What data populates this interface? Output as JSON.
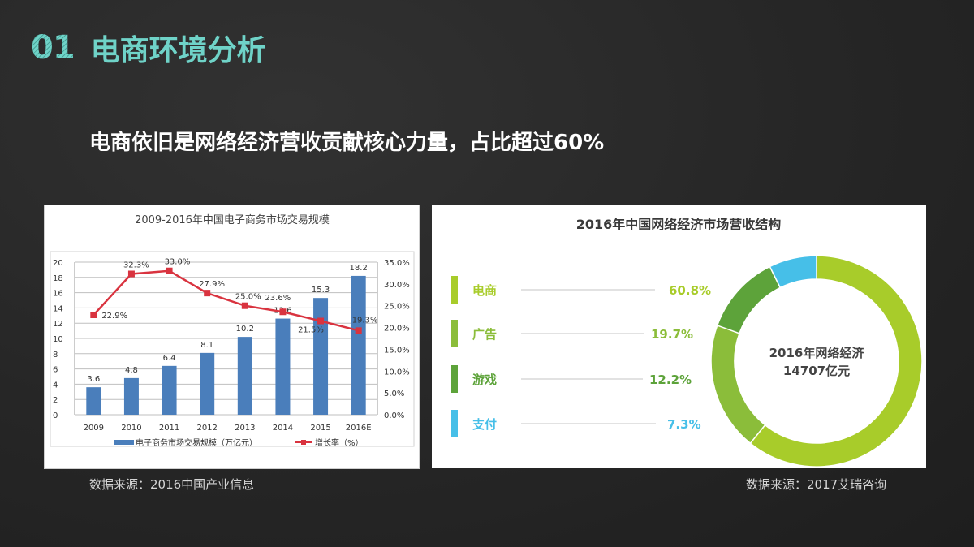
{
  "header": {
    "number": "01",
    "title": "电商环境分析"
  },
  "subtitle": "电商依旧是网络经济营收贡献核心力量，占比超过60%",
  "left_source": "数据来源：2016中国产业信息",
  "right_source": "数据来源：2017艾瑞咨询",
  "colors": {
    "accent": "#6fd3c8",
    "bar": "#4a7ebb",
    "line": "#d9333f",
    "ecommerce": "#a8cc2a",
    "ads": "#8bbd3a",
    "games": "#5da33a",
    "payment": "#46bfe8"
  },
  "chart_data": [
    {
      "type": "bar+line",
      "title": "2009-2016年中国电子商务市场交易规模",
      "categories": [
        "2009",
        "2010",
        "2011",
        "2012",
        "2013",
        "2014",
        "2015",
        "2016E"
      ],
      "series": [
        {
          "name": "电子商务市场交易规模（万亿元）",
          "type": "bar",
          "axis": "left",
          "values": [
            3.6,
            4.8,
            6.4,
            8.1,
            10.2,
            12.6,
            15.3,
            18.2
          ],
          "labels": [
            "3.6",
            "4.8",
            "6.4",
            "8.1",
            "10.2",
            "12.6",
            "15.3",
            "18.2"
          ]
        },
        {
          "name": "增长率（%）",
          "type": "line",
          "axis": "right",
          "values": [
            22.9,
            32.3,
            33.0,
            27.9,
            25.0,
            23.6,
            21.5,
            19.3
          ],
          "labels": [
            "22.9%",
            "32.3%",
            "33.0%",
            "27.9%",
            "25.0%",
            "23.6%",
            "21.5%",
            "19.3%"
          ]
        }
      ],
      "left_axis": {
        "ylim": [
          0,
          20
        ],
        "ticks": [
          "0",
          "2",
          "4",
          "6",
          "8",
          "10",
          "12",
          "14",
          "16",
          "18",
          "20"
        ]
      },
      "right_axis": {
        "ylim": [
          0,
          35
        ],
        "ticks": [
          "0.0%",
          "5.0%",
          "10.0%",
          "15.0%",
          "20.0%",
          "25.0%",
          "30.0%",
          "35.0%"
        ]
      },
      "grid": true,
      "legend_position": "bottom"
    },
    {
      "type": "pie",
      "title": "2016年中国网络经济市场营收结构",
      "center_label": [
        "2016年网络经济",
        "14707亿元"
      ],
      "categories": [
        "电商",
        "广告",
        "游戏",
        "支付"
      ],
      "values": [
        60.8,
        19.7,
        12.2,
        7.3
      ],
      "labels": [
        "60.8%",
        "19.7%",
        "12.2%",
        "7.3%"
      ],
      "donut": true,
      "legend_position": "left"
    }
  ]
}
